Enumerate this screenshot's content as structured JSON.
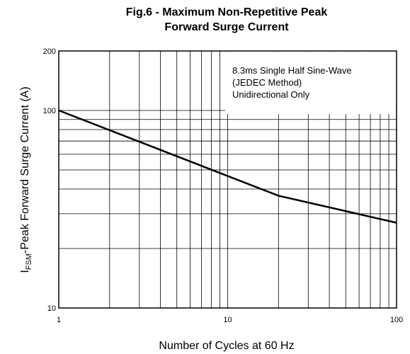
{
  "chart_data": {
    "type": "line",
    "title": [
      "Fig.6 - Maximum Non-Repetitive Peak",
      "Forward Surge Current"
    ],
    "xlabel": "Number of Cycles at 60 Hz",
    "ylabel": [
      "I",
      "FSM",
      "-Peak Forward Surge Current (A)"
    ],
    "annotations": [
      "8.3ms Single Half Sine-Wave",
      "(JEDEC Method)",
      "Unidirectional Only"
    ],
    "x": [
      1,
      20,
      100
    ],
    "values": [
      100,
      37,
      27
    ],
    "color": "#000000",
    "xscale": "log",
    "yscale": "log",
    "xlim": [
      1,
      100
    ],
    "ylim": [
      10,
      200
    ],
    "xticks": [
      1,
      10,
      100
    ],
    "yticks": [
      10,
      100,
      200
    ],
    "grid": true
  }
}
